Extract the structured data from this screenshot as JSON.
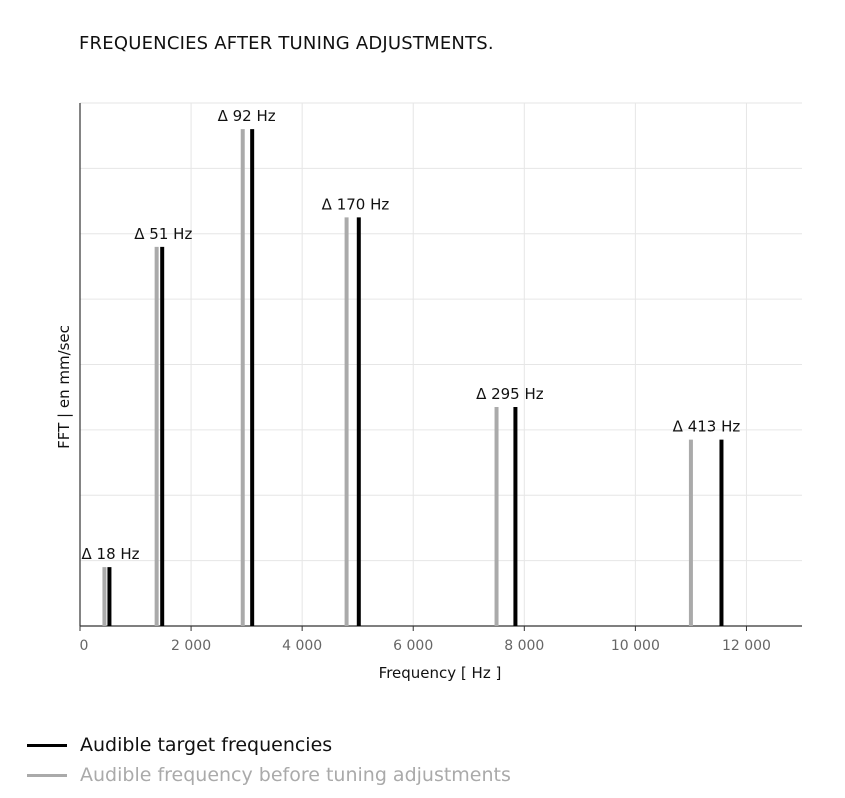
{
  "chart_data": {
    "type": "bar",
    "title": "FREQUENCIES AFTER TUNING ADJUSTMENTS.",
    "xlabel": "Frequency [ Hz ]",
    "ylabel": "FFT | en mm/sec",
    "xlim": [
      0,
      13000
    ],
    "ylim": [
      0,
      8
    ],
    "xticks": [
      {
        "value": 0,
        "label": "0"
      },
      {
        "value": 2000,
        "label": "2 000"
      },
      {
        "value": 4000,
        "label": "4 000"
      },
      {
        "value": 6000,
        "label": "6 000"
      },
      {
        "value": 8000,
        "label": "8 000"
      },
      {
        "value": 10000,
        "label": "10 000"
      },
      {
        "value": 12000,
        "label": "12 000"
      }
    ],
    "grid": true,
    "legend_position": "bottom-left",
    "series": [
      {
        "name": "Audible target frequencies",
        "color": "#000000",
        "points": [
          {
            "x": 530,
            "y": 0.9
          },
          {
            "x": 1480,
            "y": 5.8
          },
          {
            "x": 3100,
            "y": 7.6
          },
          {
            "x": 5020,
            "y": 6.25
          },
          {
            "x": 7840,
            "y": 3.35
          },
          {
            "x": 11550,
            "y": 2.85
          }
        ]
      },
      {
        "name": "Audible frequency before tuning adjustments",
        "color": "#aaaaaa",
        "points": [
          {
            "x": 440,
            "y": 0.9
          },
          {
            "x": 1380,
            "y": 5.8
          },
          {
            "x": 2930,
            "y": 7.6
          },
          {
            "x": 4800,
            "y": 6.25
          },
          {
            "x": 7500,
            "y": 3.35
          },
          {
            "x": 11000,
            "y": 2.85
          }
        ]
      }
    ],
    "annotations": [
      {
        "text": "Δ 18 Hz",
        "x": 550,
        "y": 0.9
      },
      {
        "text": "Δ 51 Hz",
        "x": 1500,
        "y": 5.8
      },
      {
        "text": "Δ 92 Hz",
        "x": 3000,
        "y": 7.6
      },
      {
        "text": "Δ 170 Hz",
        "x": 4960,
        "y": 6.25
      },
      {
        "text": "Δ 295 Hz",
        "x": 7740,
        "y": 3.35
      },
      {
        "text": "Δ 413 Hz",
        "x": 11280,
        "y": 2.85
      }
    ]
  }
}
